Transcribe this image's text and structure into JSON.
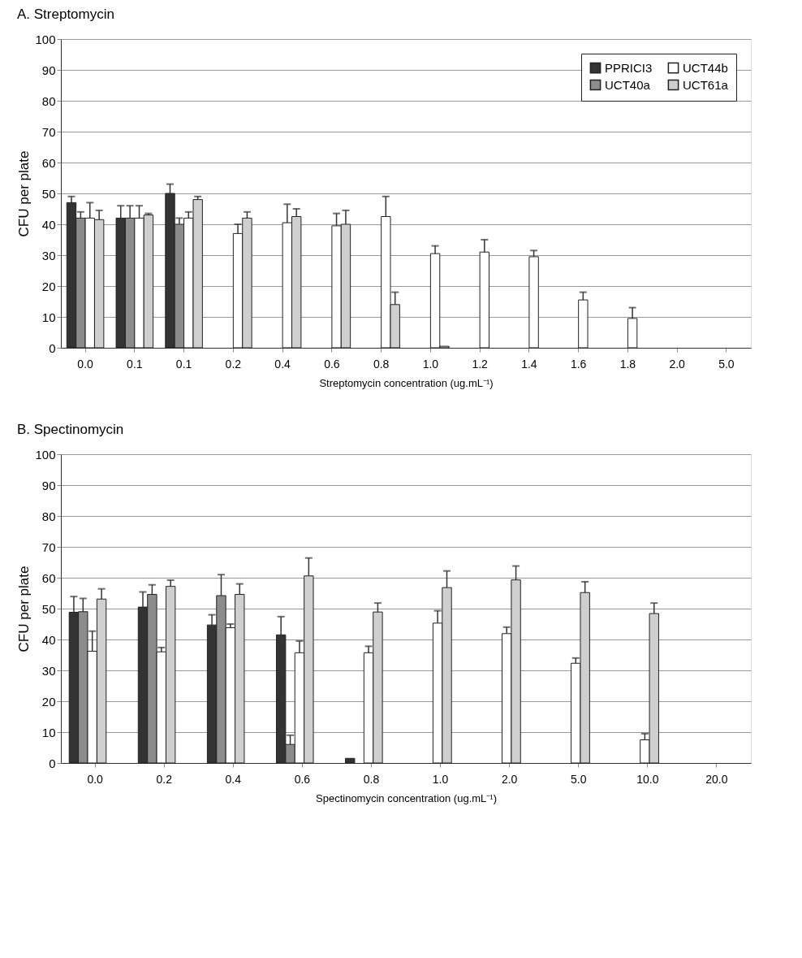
{
  "chart_data": [
    {
      "type": "bar",
      "title": "A. Streptomycin",
      "xlabel": "Streptomycin concentration (ug.mL⁻¹)",
      "ylabel": "CFU per plate",
      "categories": [
        "0.0",
        "0.1",
        "0.1",
        "0.2",
        "0.4",
        "0.6",
        "0.8",
        "1.0",
        "1.2",
        "1.4",
        "1.6",
        "1.8",
        "2.0",
        "5.0"
      ],
      "ylim": [
        0,
        100
      ],
      "yticks": [
        0,
        10,
        20,
        30,
        40,
        50,
        60,
        70,
        80,
        90,
        100
      ],
      "grid": "y",
      "legend": "top right",
      "series": [
        {
          "name": "PPRICI3",
          "color": "#333333",
          "values": [
            47,
            42,
            50,
            null,
            null,
            null,
            null,
            null,
            null,
            null,
            null,
            null,
            null,
            null
          ],
          "errors": [
            [
              47,
              49
            ],
            [
              42,
              46
            ],
            [
              50,
              53
            ],
            null,
            null,
            null,
            null,
            null,
            null,
            null,
            null,
            null,
            null,
            null
          ]
        },
        {
          "name": "UCT40a",
          "color": "#8c8c8c",
          "values": [
            42,
            42,
            40,
            null,
            null,
            null,
            null,
            null,
            null,
            null,
            null,
            null,
            null,
            null
          ],
          "errors": [
            [
              42,
              44
            ],
            [
              42,
              46
            ],
            [
              40,
              42
            ],
            null,
            null,
            null,
            null,
            null,
            null,
            null,
            null,
            null,
            null,
            null
          ]
        },
        {
          "name": "UCT44b",
          "color": "#ffffff",
          "values": [
            42,
            42,
            42,
            37,
            40.5,
            39.5,
            42.5,
            30.5,
            31,
            29.5,
            15.5,
            9.5,
            null,
            null
          ],
          "errors": [
            [
              42,
              47
            ],
            [
              42,
              46
            ],
            [
              42,
              44
            ],
            [
              37,
              40
            ],
            [
              40.5,
              46.5
            ],
            [
              39.5,
              43.5
            ],
            [
              42.5,
              49
            ],
            [
              30.5,
              33
            ],
            [
              31,
              35
            ],
            [
              29.5,
              31.5
            ],
            [
              15.5,
              18
            ],
            [
              9.5,
              13
            ],
            null,
            null
          ]
        },
        {
          "name": "UCT61a",
          "color": "#cfcfcf",
          "values": [
            41.5,
            43,
            48,
            42,
            42.5,
            40,
            14,
            0.5,
            null,
            null,
            null,
            null,
            null,
            null
          ],
          "errors": [
            [
              41.5,
              44.5
            ],
            [
              43,
              43.5
            ],
            [
              48,
              49
            ],
            [
              42,
              44
            ],
            [
              42.5,
              45
            ],
            [
              40,
              44.5
            ],
            [
              14,
              18
            ],
            null,
            null,
            null,
            null,
            null,
            null,
            null
          ]
        }
      ]
    },
    {
      "type": "bar",
      "title": "B. Spectinomycin",
      "xlabel": "Spectinomycin concentration (ug.mL⁻¹)",
      "ylabel": "CFU per plate",
      "categories": [
        "0.0",
        "0.2",
        "0.4",
        "0.6",
        "0.8",
        "1.0",
        "2.0",
        "5.0",
        "10.0",
        "20.0"
      ],
      "ylim": [
        0,
        100
      ],
      "yticks": [
        0,
        10,
        20,
        30,
        40,
        50,
        60,
        70,
        80,
        90,
        100
      ],
      "grid": "y",
      "series": [
        {
          "name": "PPRICI3",
          "color": "#333333",
          "values": [
            48.8,
            50.5,
            44.7,
            41.5,
            1.5,
            null,
            null,
            null,
            null,
            null
          ],
          "errors": [
            [
              48.8,
              53.9
            ],
            [
              50.5,
              55.4
            ],
            [
              44.7,
              48
            ],
            [
              41.5,
              47.4
            ],
            null,
            null,
            null,
            null,
            null,
            null
          ]
        },
        {
          "name": "UCT40a",
          "color": "#8c8c8c",
          "values": [
            49,
            54.6,
            54.2,
            6,
            null,
            null,
            null,
            null,
            null,
            null
          ],
          "errors": [
            [
              49,
              53.3
            ],
            [
              54.6,
              57.7
            ],
            [
              54.2,
              61
            ],
            [
              6,
              9
            ],
            null,
            null,
            null,
            null,
            null,
            null
          ]
        },
        {
          "name": "UCT44b",
          "color": "#ffffff",
          "values": [
            36.2,
            36,
            43.8,
            35.7,
            35.7,
            45.3,
            41.9,
            32.3,
            7.5,
            null
          ],
          "errors": [
            [
              36.2,
              42.7
            ],
            [
              36,
              37.4
            ],
            [
              43.8,
              45
            ],
            [
              35.7,
              39.5
            ],
            [
              35.7,
              37.8
            ],
            [
              45.3,
              49.3
            ],
            [
              41.9,
              44
            ],
            [
              32.3,
              34
            ],
            [
              7.5,
              9.5
            ],
            null
          ]
        },
        {
          "name": "UCT61a",
          "color": "#cfcfcf",
          "values": [
            53.1,
            57.2,
            54.6,
            60.6,
            48.9,
            56.8,
            59.3,
            55.2,
            48.4,
            null
          ],
          "errors": [
            [
              53.1,
              56.4
            ],
            [
              57.2,
              59.2
            ],
            [
              54.6,
              58
            ],
            [
              60.6,
              66.4
            ],
            [
              48.9,
              51.8
            ],
            [
              56.8,
              62.2
            ],
            [
              59.3,
              63.8
            ],
            [
              55.2,
              58.7
            ],
            [
              48.4,
              51.8
            ],
            null
          ]
        }
      ]
    }
  ]
}
